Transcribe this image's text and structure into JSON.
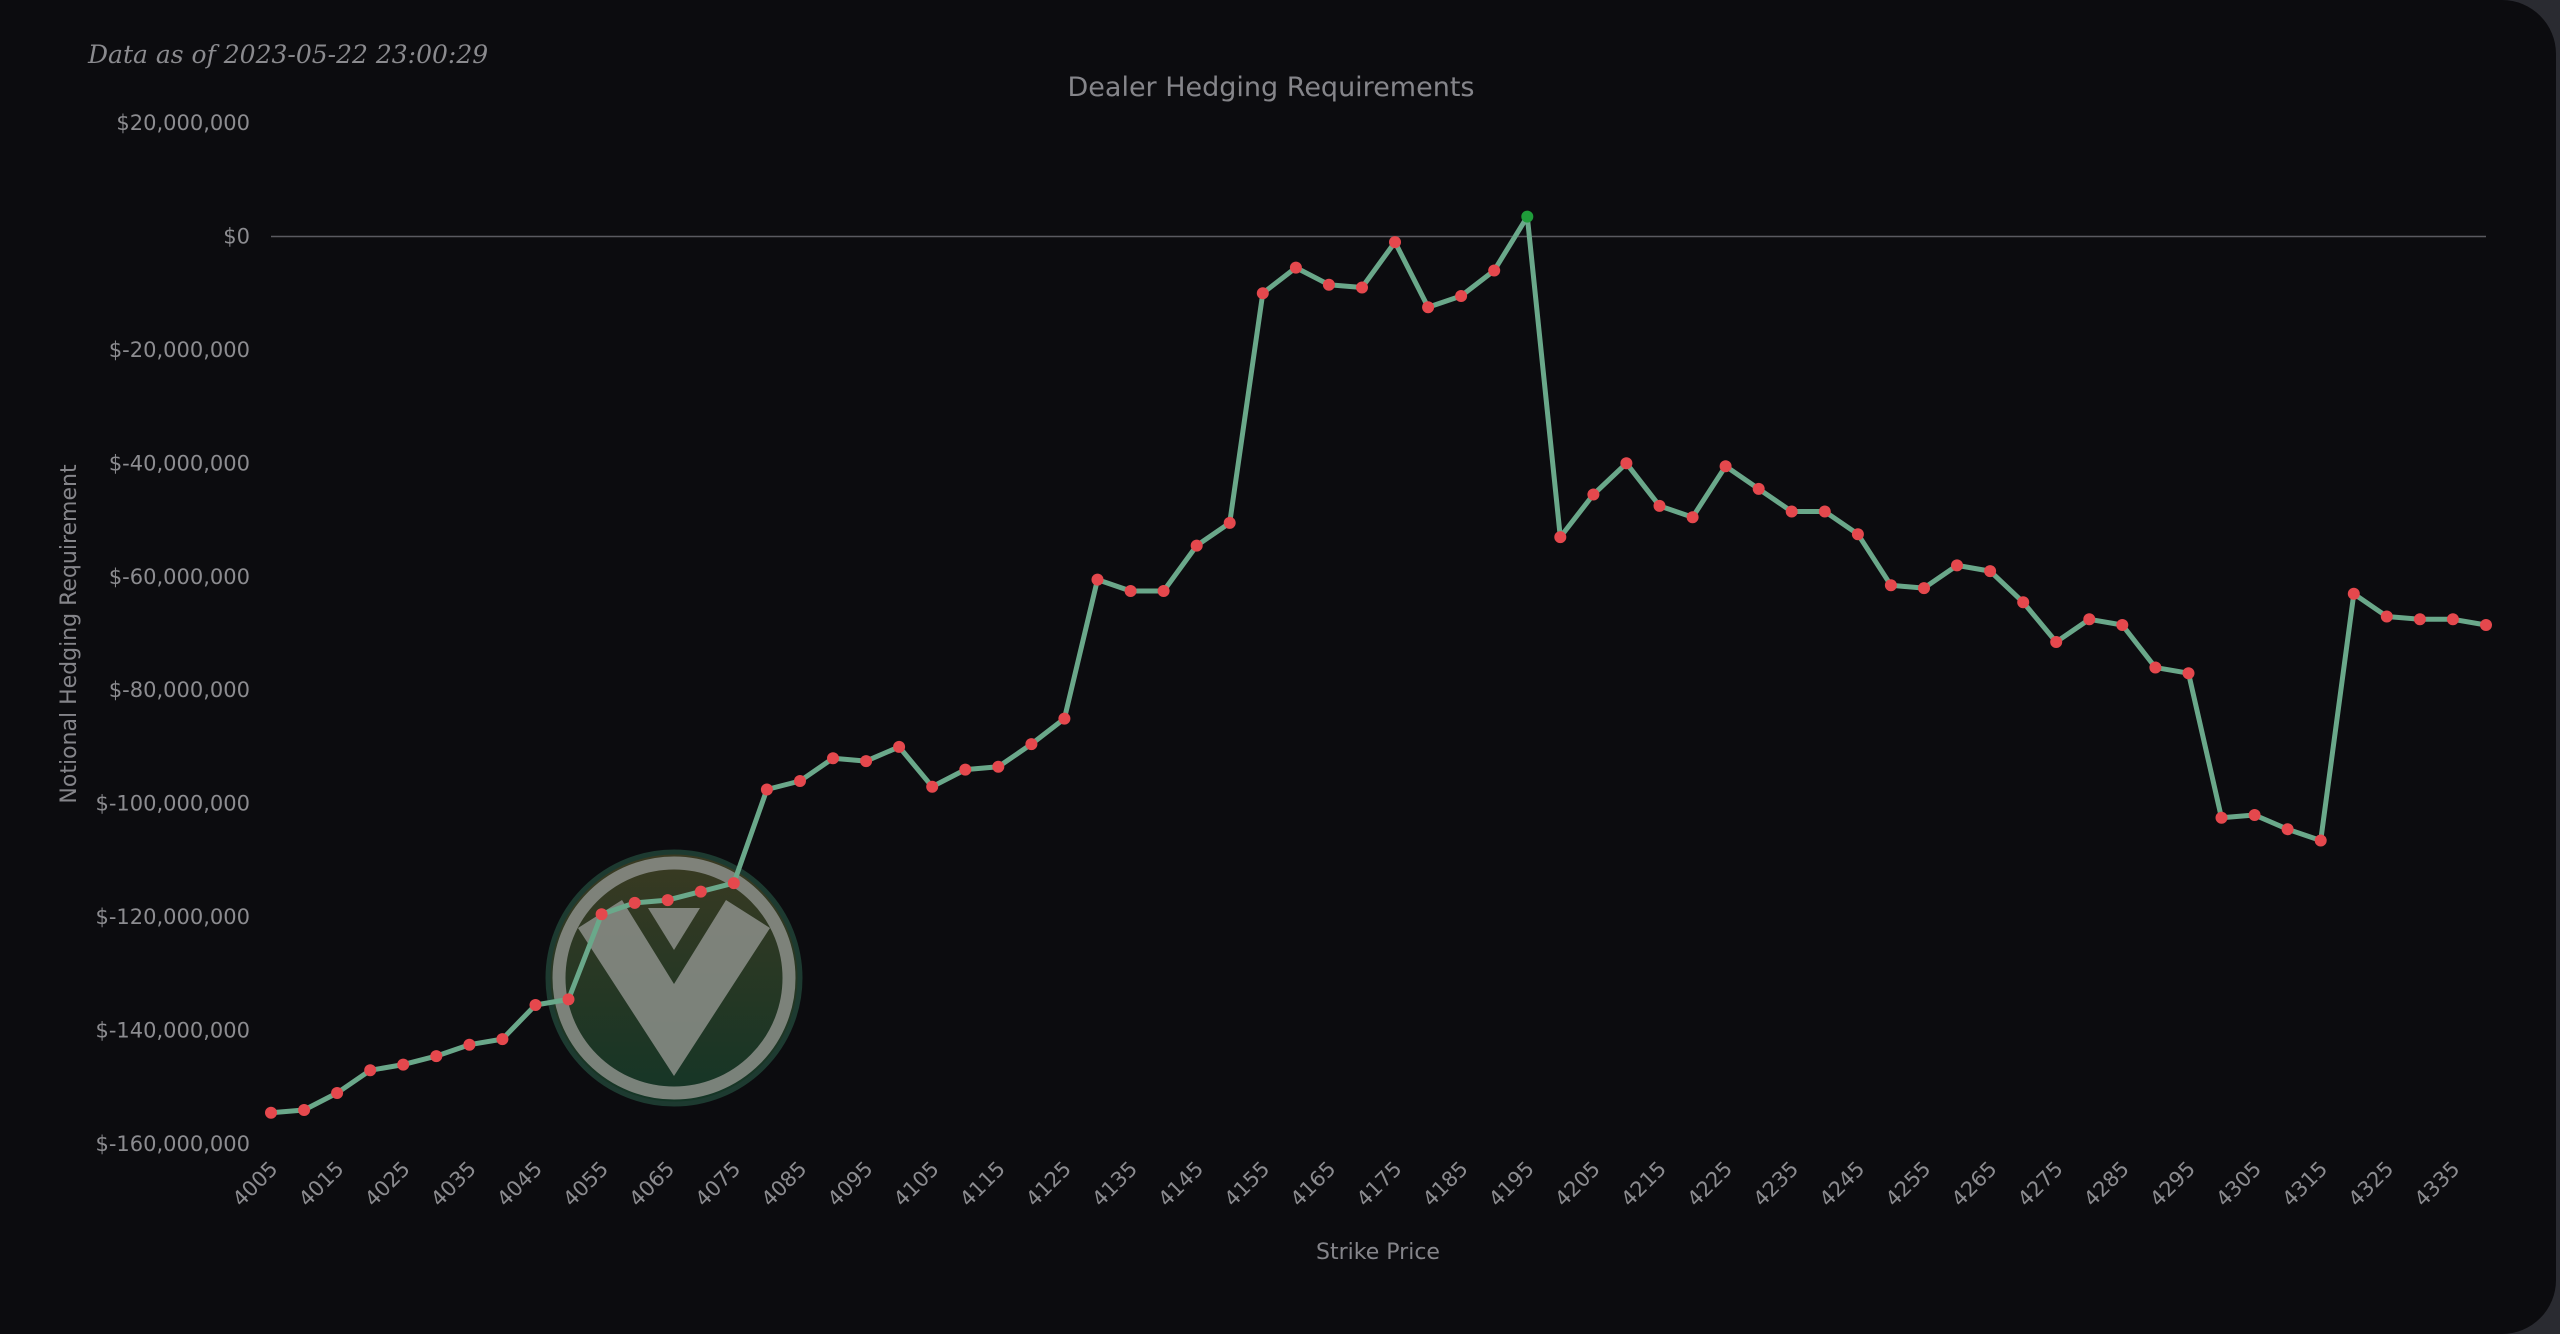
{
  "timestamp": "Data as of 2023-05-22 23:00:29",
  "colors": {
    "background": "#0c0c0f",
    "line": "#6aa88a",
    "negative_point": "#e5484d",
    "positive_point": "#1f9d3a",
    "zero_line": "#5a5a60",
    "text": "#85858a"
  },
  "watermark": {
    "icon": "v-shield-logo-icon"
  },
  "chart_data": {
    "type": "line",
    "title": "Dealer Hedging Requirements",
    "xlabel": "Strike Price",
    "ylabel": "Notional Hedging Requirement",
    "ylim": [
      -160000000,
      20000000
    ],
    "y_ticks": [
      20000000,
      0,
      -20000000,
      -40000000,
      -60000000,
      -80000000,
      -100000000,
      -120000000,
      -140000000,
      -160000000
    ],
    "y_tick_labels": [
      "$20,000,000",
      "$0",
      "$-20,000,000",
      "$-40,000,000",
      "$-60,000,000",
      "$-80,000,000",
      "$-100,000,000",
      "$-120,000,000",
      "$-140,000,000",
      "$-160,000,000"
    ],
    "x_tick_labels": [
      "4005",
      "4015",
      "4025",
      "4035",
      "4045",
      "4055",
      "4065",
      "4075",
      "4085",
      "4095",
      "4105",
      "4115",
      "4125",
      "4135",
      "4145",
      "4155",
      "4165",
      "4175",
      "4185",
      "4195",
      "4205",
      "4215",
      "4225",
      "4235",
      "4245",
      "4255",
      "4265",
      "4275",
      "4285",
      "4295",
      "4305",
      "4315",
      "4325",
      "4335"
    ],
    "grid": false,
    "legend": "none",
    "series": [
      {
        "x": [
          4005,
          4010,
          4015,
          4020,
          4025,
          4030,
          4035,
          4040,
          4045,
          4050,
          4055,
          4060,
          4065,
          4070,
          4075,
          4080,
          4085,
          4090,
          4095,
          4100,
          4105,
          4110,
          4115,
          4120,
          4125,
          4130,
          4135,
          4140,
          4145,
          4150,
          4155,
          4160,
          4165,
          4170,
          4175,
          4180,
          4185,
          4190,
          4195,
          4200,
          4205,
          4210,
          4215,
          4220,
          4225,
          4230,
          4235,
          4240,
          4245,
          4250,
          4255,
          4260,
          4265,
          4270,
          4275,
          4280,
          4285,
          4290,
          4295,
          4300,
          4305,
          4310,
          4315,
          4320,
          4325,
          4330,
          4335,
          4340
        ],
        "values": [
          -154500000,
          -154000000,
          -151000000,
          -147000000,
          -146000000,
          -144500000,
          -142500000,
          -141500000,
          -135500000,
          -134500000,
          -119500000,
          -117500000,
          -117000000,
          -115500000,
          -114000000,
          -97500000,
          -96000000,
          -92000000,
          -92500000,
          -90000000,
          -97000000,
          -94000000,
          -93500000,
          -89500000,
          -85000000,
          -60500000,
          -62500000,
          -62500000,
          -54500000,
          -50500000,
          -10000000,
          -5500000,
          -8500000,
          -9000000,
          -1000000,
          -12500000,
          -10500000,
          -6000000,
          3500000,
          -53000000,
          -45500000,
          -40000000,
          -47500000,
          -49500000,
          -40500000,
          -44500000,
          -48500000,
          -48500000,
          -52500000,
          -61500000,
          -62000000,
          -58000000,
          -59000000,
          -64500000,
          -71500000,
          -67500000,
          -68500000,
          -76000000,
          -77000000,
          -102500000,
          -102000000,
          -104500000,
          -106500000,
          -63000000,
          -67000000,
          -67500000,
          -67500000,
          -68500000
        ]
      }
    ]
  }
}
